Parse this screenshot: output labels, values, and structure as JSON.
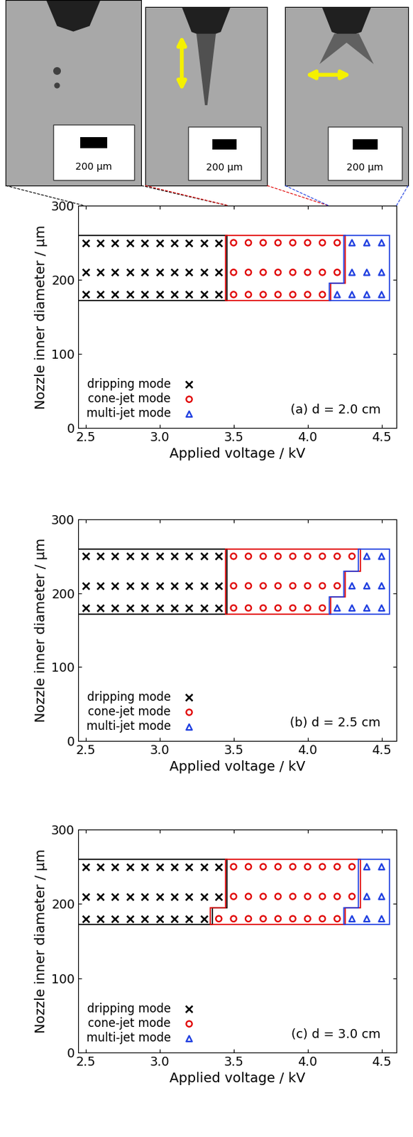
{
  "images": [
    {
      "scale_label": "200 μm"
    },
    {
      "scale_label": "200 μm"
    },
    {
      "scale_label": "200 μm"
    }
  ],
  "chart_data": [
    {
      "type": "scatter",
      "annotation": "(a) d = 2.0 cm",
      "x_label": "Applied voltage / kV",
      "y_label": "Nozzle inner diameter / μm",
      "xlim": [
        2.45,
        4.6
      ],
      "ylim": [
        0,
        300
      ],
      "xticks": [
        2.5,
        3.0,
        3.5,
        4.0,
        4.5
      ],
      "yticks": [
        0,
        100,
        200,
        300
      ],
      "legend": "lower left",
      "series": [
        {
          "name": "dripping mode",
          "color": "#000000",
          "marker": "x",
          "x": [
            2.5,
            2.6,
            2.7,
            2.8,
            2.9,
            3.0,
            3.1,
            3.2,
            3.3,
            3.4,
            2.5,
            2.6,
            2.7,
            2.8,
            2.9,
            3.0,
            3.1,
            3.2,
            3.3,
            3.4,
            2.5,
            2.6,
            2.7,
            2.8,
            2.9,
            3.0,
            3.1,
            3.2,
            3.3,
            3.4
          ],
          "values": [
            250,
            250,
            250,
            250,
            250,
            250,
            250,
            250,
            250,
            250,
            210,
            210,
            210,
            210,
            210,
            210,
            210,
            210,
            210,
            210,
            180,
            180,
            180,
            180,
            180,
            180,
            180,
            180,
            180,
            180
          ]
        },
        {
          "name": "cone-jet mode",
          "color": "#e00000",
          "marker": "o",
          "x": [
            3.5,
            3.6,
            3.7,
            3.8,
            3.9,
            4.0,
            4.1,
            4.2,
            3.5,
            3.6,
            3.7,
            3.8,
            3.9,
            4.0,
            4.1,
            4.2,
            3.5,
            3.6,
            3.7,
            3.8,
            3.9,
            4.0,
            4.1
          ],
          "values": [
            250,
            250,
            250,
            250,
            250,
            250,
            250,
            250,
            210,
            210,
            210,
            210,
            210,
            210,
            210,
            210,
            180,
            180,
            180,
            180,
            180,
            180,
            180
          ]
        },
        {
          "name": "multi-jet mode",
          "color": "#1f3fe0",
          "marker": "^",
          "x": [
            4.3,
            4.4,
            4.5,
            4.3,
            4.4,
            4.5,
            4.2,
            4.3,
            4.4,
            4.5
          ],
          "values": [
            250,
            250,
            250,
            210,
            210,
            210,
            180,
            180,
            180,
            180
          ]
        }
      ]
    },
    {
      "type": "scatter",
      "annotation": "(b) d = 2.5 cm",
      "x_label": "Applied voltage / kV",
      "y_label": "Nozzle inner diameter / μm",
      "xlim": [
        2.45,
        4.6
      ],
      "ylim": [
        0,
        300
      ],
      "xticks": [
        2.5,
        3.0,
        3.5,
        4.0,
        4.5
      ],
      "yticks": [
        0,
        100,
        200,
        300
      ],
      "legend": "lower left",
      "series": [
        {
          "name": "dripping mode",
          "color": "#000000",
          "marker": "x",
          "x": [
            2.5,
            2.6,
            2.7,
            2.8,
            2.9,
            3.0,
            3.1,
            3.2,
            3.3,
            3.4,
            2.5,
            2.6,
            2.7,
            2.8,
            2.9,
            3.0,
            3.1,
            3.2,
            3.3,
            3.4,
            2.5,
            2.6,
            2.7,
            2.8,
            2.9,
            3.0,
            3.1,
            3.2,
            3.3,
            3.4
          ],
          "values": [
            250,
            250,
            250,
            250,
            250,
            250,
            250,
            250,
            250,
            250,
            210,
            210,
            210,
            210,
            210,
            210,
            210,
            210,
            210,
            210,
            180,
            180,
            180,
            180,
            180,
            180,
            180,
            180,
            180,
            180
          ]
        },
        {
          "name": "cone-jet mode",
          "color": "#e00000",
          "marker": "o",
          "x": [
            3.5,
            3.6,
            3.7,
            3.8,
            3.9,
            4.0,
            4.1,
            4.2,
            4.3,
            3.5,
            3.6,
            3.7,
            3.8,
            3.9,
            4.0,
            4.1,
            4.2,
            3.5,
            3.6,
            3.7,
            3.8,
            3.9,
            4.0,
            4.1
          ],
          "values": [
            250,
            250,
            250,
            250,
            250,
            250,
            250,
            250,
            250,
            210,
            210,
            210,
            210,
            210,
            210,
            210,
            210,
            180,
            180,
            180,
            180,
            180,
            180,
            180
          ]
        },
        {
          "name": "multi-jet mode",
          "color": "#1f3fe0",
          "marker": "^",
          "x": [
            4.4,
            4.5,
            4.3,
            4.4,
            4.5,
            4.2,
            4.3,
            4.4,
            4.5
          ],
          "values": [
            250,
            250,
            210,
            210,
            210,
            180,
            180,
            180,
            180
          ]
        }
      ]
    },
    {
      "type": "scatter",
      "annotation": "(c) d = 3.0 cm",
      "x_label": "Applied voltage / kV",
      "y_label": "Nozzle inner diameter / μm",
      "xlim": [
        2.45,
        4.6
      ],
      "ylim": [
        0,
        300
      ],
      "xticks": [
        2.5,
        3.0,
        3.5,
        4.0,
        4.5
      ],
      "yticks": [
        0,
        100,
        200,
        300
      ],
      "legend": "lower left",
      "series": [
        {
          "name": "dripping mode",
          "color": "#000000",
          "marker": "x",
          "x": [
            2.5,
            2.6,
            2.7,
            2.8,
            2.9,
            3.0,
            3.1,
            3.2,
            3.3,
            3.4,
            2.5,
            2.6,
            2.7,
            2.8,
            2.9,
            3.0,
            3.1,
            3.2,
            3.3,
            3.4,
            2.5,
            2.6,
            2.7,
            2.8,
            2.9,
            3.0,
            3.1,
            3.2,
            3.3
          ],
          "values": [
            250,
            250,
            250,
            250,
            250,
            250,
            250,
            250,
            250,
            250,
            210,
            210,
            210,
            210,
            210,
            210,
            210,
            210,
            210,
            210,
            180,
            180,
            180,
            180,
            180,
            180,
            180,
            180,
            180
          ]
        },
        {
          "name": "cone-jet mode",
          "color": "#e00000",
          "marker": "o",
          "x": [
            3.5,
            3.6,
            3.7,
            3.8,
            3.9,
            4.0,
            4.1,
            4.2,
            4.3,
            3.5,
            3.6,
            3.7,
            3.8,
            3.9,
            4.0,
            4.1,
            4.2,
            4.3,
            3.4,
            3.5,
            3.6,
            3.7,
            3.8,
            3.9,
            4.0,
            4.1,
            4.2
          ],
          "values": [
            250,
            250,
            250,
            250,
            250,
            250,
            250,
            250,
            250,
            210,
            210,
            210,
            210,
            210,
            210,
            210,
            210,
            210,
            180,
            180,
            180,
            180,
            180,
            180,
            180,
            180,
            180
          ]
        },
        {
          "name": "multi-jet mode",
          "color": "#1f3fe0",
          "marker": "^",
          "x": [
            4.4,
            4.5,
            4.4,
            4.5,
            4.3,
            4.4,
            4.5
          ],
          "values": [
            250,
            250,
            210,
            210,
            180,
            180,
            180
          ]
        }
      ]
    }
  ]
}
